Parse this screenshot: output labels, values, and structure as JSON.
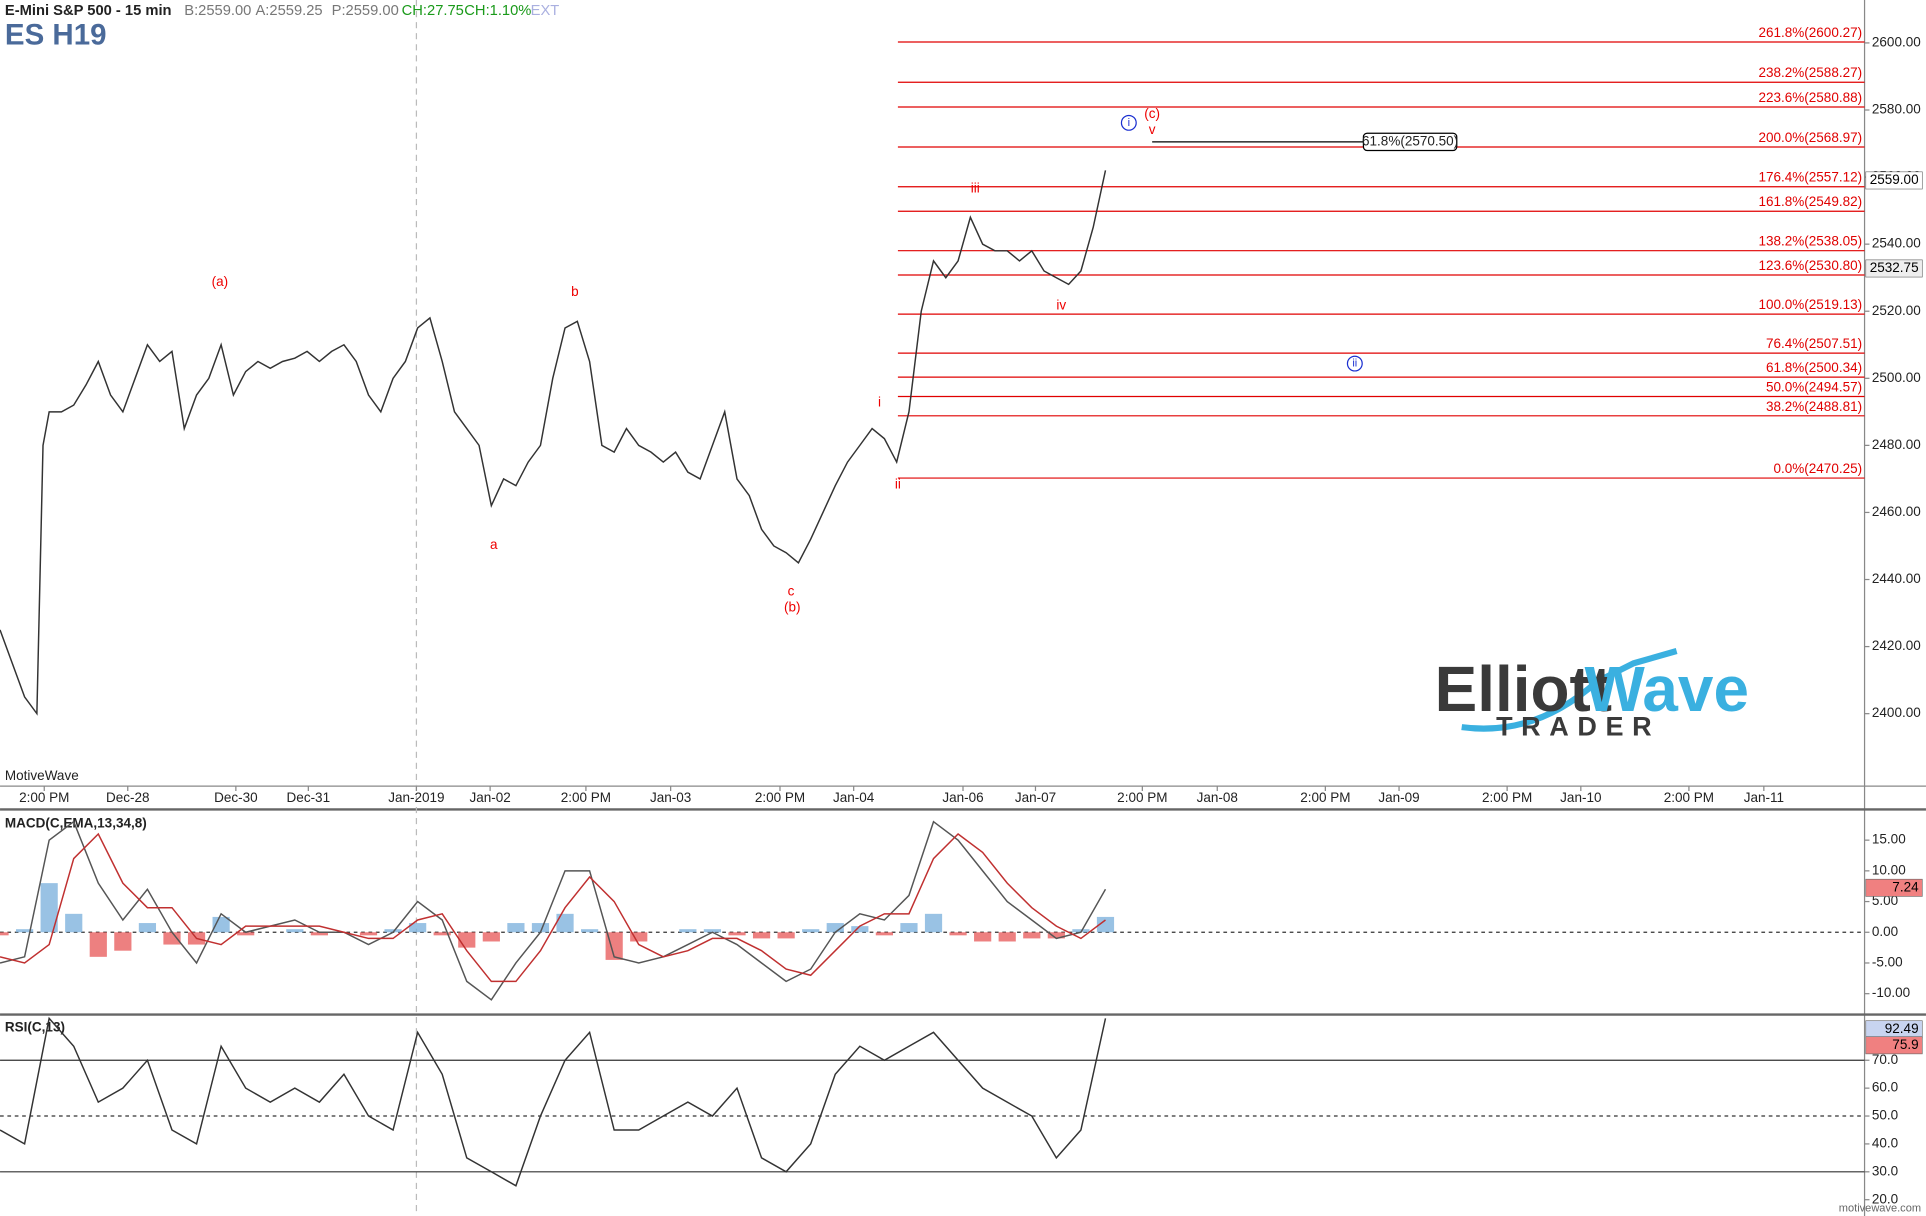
{
  "header": {
    "title": "E-Mini S&P 500 - 15 min",
    "bid": "B:2559.00",
    "ask": "A:2559.25",
    "last": "P:2559.00",
    "change": "CH:27.75",
    "change_pct": "CH:1.10%",
    "session": "EXT",
    "symbol": "ES H19",
    "source": "MotiveWave",
    "site": "motivewave.com"
  },
  "logo": {
    "elliott": "Elliott",
    "wave": "Wave",
    "trader": "TRADER"
  },
  "chart_data": [
    {
      "type": "line",
      "color": "#333333",
      "x": [
        0,
        1,
        2,
        3,
        3.5,
        4,
        5,
        6,
        7,
        8,
        9,
        10,
        11,
        12,
        13,
        14,
        15,
        16,
        17,
        18,
        19,
        20,
        21,
        22,
        23,
        24,
        25,
        26,
        27,
        28,
        29,
        30,
        31,
        32,
        33,
        34,
        35,
        36,
        37,
        38,
        39,
        40,
        41,
        42,
        43,
        44,
        45,
        46,
        47,
        48,
        49,
        50,
        51,
        52,
        53,
        54,
        55,
        56,
        57,
        58,
        59,
        60,
        61,
        62,
        63,
        64,
        65,
        66,
        67,
        68,
        69,
        70,
        71,
        72,
        73,
        74,
        75,
        76,
        77,
        78,
        79,
        80,
        81,
        82,
        83,
        84,
        85,
        86,
        87,
        88,
        89,
        90
      ],
      "values": [
        2425,
        2415,
        2405,
        2400,
        2480,
        2490,
        2490,
        2492,
        2498,
        2505,
        2495,
        2490,
        2500,
        2510,
        2505,
        2508,
        2485,
        2495,
        2500,
        2510,
        2495,
        2502,
        2505,
        2503,
        2505,
        2506,
        2508,
        2505,
        2508,
        2510,
        2505,
        2495,
        2490,
        2500,
        2505,
        2515,
        2518,
        2505,
        2490,
        2485,
        2480,
        2462,
        2470,
        2468,
        2475,
        2480,
        2500,
        2515,
        2517,
        2505,
        2480,
        2478,
        2485,
        2480,
        2478,
        2475,
        2478,
        2472,
        2470,
        2480,
        2490,
        2470,
        2465,
        2455,
        2450,
        2448,
        2445,
        2452,
        2460,
        2468,
        2475,
        2480,
        2485,
        2482,
        2475,
        2490,
        2520,
        2535,
        2530,
        2535,
        2548,
        2540,
        2538,
        2538,
        2535,
        2538,
        2532,
        2530,
        2528,
        2532,
        2545,
        2562
      ],
      "xlim": [
        0,
        151.8
      ],
      "ylim": [
        2378.4,
        2612.8
      ],
      "xticks": [
        {
          "value": 3.6,
          "label": "2:00 PM"
        },
        {
          "value": 10.4,
          "label": "Dec-28"
        },
        {
          "value": 19.2,
          "label": "Dec-30"
        },
        {
          "value": 25.1,
          "label": "Dec-31"
        },
        {
          "value": 33.9,
          "label": "Jan-2019"
        },
        {
          "value": 39.9,
          "label": "Jan-02"
        },
        {
          "value": 47.7,
          "label": "2:00 PM"
        },
        {
          "value": 54.6,
          "label": "Jan-03"
        },
        {
          "value": 63.5,
          "label": "2:00 PM"
        },
        {
          "value": 69.5,
          "label": "Jan-04"
        },
        {
          "value": 78.4,
          "label": "Jan-06"
        },
        {
          "value": 84.3,
          "label": "Jan-07"
        },
        {
          "value": 93.0,
          "label": "2:00 PM"
        },
        {
          "value": 99.1,
          "label": "Jan-08"
        },
        {
          "value": 107.9,
          "label": "2:00 PM"
        },
        {
          "value": 113.9,
          "label": "Jan-09"
        },
        {
          "value": 122.7,
          "label": "2:00 PM"
        },
        {
          "value": 128.7,
          "label": "Jan-10"
        },
        {
          "value": 137.5,
          "label": "2:00 PM"
        },
        {
          "value": 143.6,
          "label": "Jan-11"
        }
      ],
      "yticks": [
        {
          "value": 2400,
          "label": "2400.00"
        },
        {
          "value": 2420,
          "label": "2420.00"
        },
        {
          "value": 2440,
          "label": "2440.00"
        },
        {
          "value": 2460,
          "label": "2460.00"
        },
        {
          "value": 2480,
          "label": "2480.00"
        },
        {
          "value": 2500,
          "label": "2500.00"
        },
        {
          "value": 2520,
          "label": "2520.00"
        },
        {
          "value": 2540,
          "label": "2540.00"
        },
        {
          "value": 2560,
          "label": "2560.00"
        },
        {
          "value": 2580,
          "label": "2580.00"
        },
        {
          "value": 2600,
          "label": "2600.00"
        }
      ],
      "price_badges": [
        {
          "value": 2559,
          "label": "2559.00"
        },
        2532.75
      ],
      "fib_color": "#e00000",
      "fib_levels": [
        {
          "label": "261.8%(2600.27)",
          "value": 2600.27
        },
        {
          "label": "238.2%(2588.27)",
          "value": 2588.27
        },
        {
          "label": "223.6%(2580.88)",
          "value": 2580.88
        },
        {
          "label": "200.0%(2568.97)",
          "value": 2568.97
        },
        {
          "label": "176.4%(2557.12)",
          "value": 2557.12
        },
        {
          "label": "161.8%(2549.82)",
          "value": 2549.82
        },
        {
          "label": "138.2%(2538.05)",
          "value": 2538.05
        },
        {
          "label": "123.6%(2530.80)",
          "value": 2530.8
        },
        {
          "label": "100.0%(2519.13)",
          "value": 2519.13
        },
        {
          "label": "76.4%(2507.51)",
          "value": 2507.51
        },
        {
          "label": "61.8%(2500.34)",
          "value": 2500.34
        },
        {
          "label": "50.0%(2494.57)",
          "value": 2494.57
        },
        {
          "label": "38.2%(2488.81)",
          "value": 2488.81
        },
        {
          "label": "0.0%(2470.25)",
          "value": 2470.25
        }
      ],
      "fib_extension": {
        "label": "61.8%(2570.50)",
        "value": 2570.5
      },
      "wave_labels": [
        "(a)",
        "b",
        "a",
        "c",
        "(b)",
        "i",
        "ii",
        "iii",
        "iv",
        "v",
        "(c)"
      ],
      "circled_labels": [
        "i",
        "ii"
      ]
    },
    {
      "type": "macd",
      "title": "MACD(C,EMA,13,34,8)",
      "x": [
        0,
        2,
        4,
        6,
        8,
        10,
        12,
        14,
        16,
        18,
        20,
        22,
        24,
        26,
        28,
        30,
        32,
        34,
        36,
        38,
        40,
        42,
        44,
        46,
        48,
        50,
        52,
        54,
        56,
        58,
        60,
        62,
        64,
        66,
        68,
        70,
        72,
        74,
        76,
        78,
        80,
        82,
        84,
        86,
        88,
        90
      ],
      "series": [
        {
          "color": "#555555",
          "values": [
            -5,
            -4,
            15,
            18,
            8,
            2,
            7,
            0,
            -5,
            3,
            0,
            1,
            2,
            0,
            0,
            -2,
            0,
            5,
            2,
            -8,
            -11,
            -5,
            0,
            10,
            10,
            -4,
            -5,
            -4,
            -2,
            0,
            -2,
            -5,
            -8,
            -6,
            0,
            3,
            2,
            6,
            18,
            15,
            10,
            5,
            2,
            -1,
            0,
            7
          ]
        },
        {
          "color": "#c03030",
          "values": [
            -4,
            -5,
            -2,
            12,
            16,
            8,
            4,
            4,
            -1,
            -2,
            1,
            1,
            1,
            1,
            0,
            -1,
            -1,
            2,
            3,
            -3,
            -8,
            -8,
            -3,
            4,
            9,
            5,
            -2,
            -4,
            -3,
            -1,
            -1,
            -3,
            -6,
            -7,
            -3,
            1,
            3,
            3,
            12,
            16,
            13,
            8,
            4,
            1,
            -1,
            2
          ]
        }
      ],
      "histogram": {
        "up_color": "#7fb3dd",
        "down_color": "#e86060",
        "values": [
          -0.5,
          0.5,
          8,
          3,
          -4,
          -3,
          1.5,
          -2,
          -2,
          2.5,
          -0.5,
          0,
          0.5,
          -0.5,
          0,
          -0.5,
          0.5,
          1.5,
          -0.5,
          -2.5,
          -1.5,
          1.5,
          1.5,
          3,
          0.5,
          -4.5,
          -1.5,
          0,
          0.5,
          0.5,
          -0.5,
          -1,
          -1,
          0.5,
          1.5,
          1,
          -0.5,
          1.5,
          3,
          -0.5,
          -1.5,
          -1.5,
          -1,
          -1,
          0.5,
          2.5
        ]
      },
      "xlim": [
        0,
        151.8
      ],
      "ylim": [
        -13.2,
        19.4
      ],
      "yticks": [
        {
          "value": 15,
          "label": "15.00"
        },
        {
          "value": 10,
          "label": "10.00"
        },
        {
          "value": 5,
          "label": "5.00"
        },
        {
          "value": 0,
          "label": "0.00"
        },
        {
          "value": -5,
          "label": "-5.00"
        },
        {
          "value": -10,
          "label": "-10.00"
        }
      ],
      "badge": 7.24
    },
    {
      "type": "rsi",
      "title": "RSI(C,13)",
      "color": "#333333",
      "x": [
        0,
        2,
        4,
        6,
        8,
        10,
        12,
        14,
        16,
        18,
        20,
        22,
        24,
        26,
        28,
        30,
        32,
        34,
        36,
        38,
        40,
        42,
        44,
        46,
        48,
        50,
        52,
        54,
        56,
        58,
        60,
        62,
        64,
        66,
        68,
        70,
        72,
        74,
        76,
        78,
        80,
        82,
        84,
        86,
        88,
        90
      ],
      "values": [
        45,
        40,
        85,
        75,
        55,
        60,
        70,
        45,
        40,
        75,
        60,
        55,
        60,
        55,
        65,
        50,
        45,
        80,
        65,
        35,
        30,
        25,
        50,
        70,
        80,
        45,
        45,
        50,
        55,
        50,
        60,
        35,
        30,
        40,
        65,
        75,
        70,
        75,
        80,
        70,
        60,
        55,
        50,
        35,
        45,
        85
      ],
      "xlim": [
        0,
        151.8
      ],
      "ylim": [
        16.8,
        85.5
      ],
      "yticks": [
        {
          "value": 70,
          "label": "70.0"
        },
        {
          "value": 60,
          "label": "60.0"
        },
        {
          "value": 50,
          "label": "50.0"
        },
        {
          "value": 40,
          "label": "40.0"
        },
        {
          "value": 30,
          "label": "30.0"
        },
        {
          "value": 20,
          "label": "20.0"
        }
      ],
      "levels": [
        70,
        50,
        30
      ],
      "badges": [
        92.49,
        75.9
      ]
    }
  ]
}
